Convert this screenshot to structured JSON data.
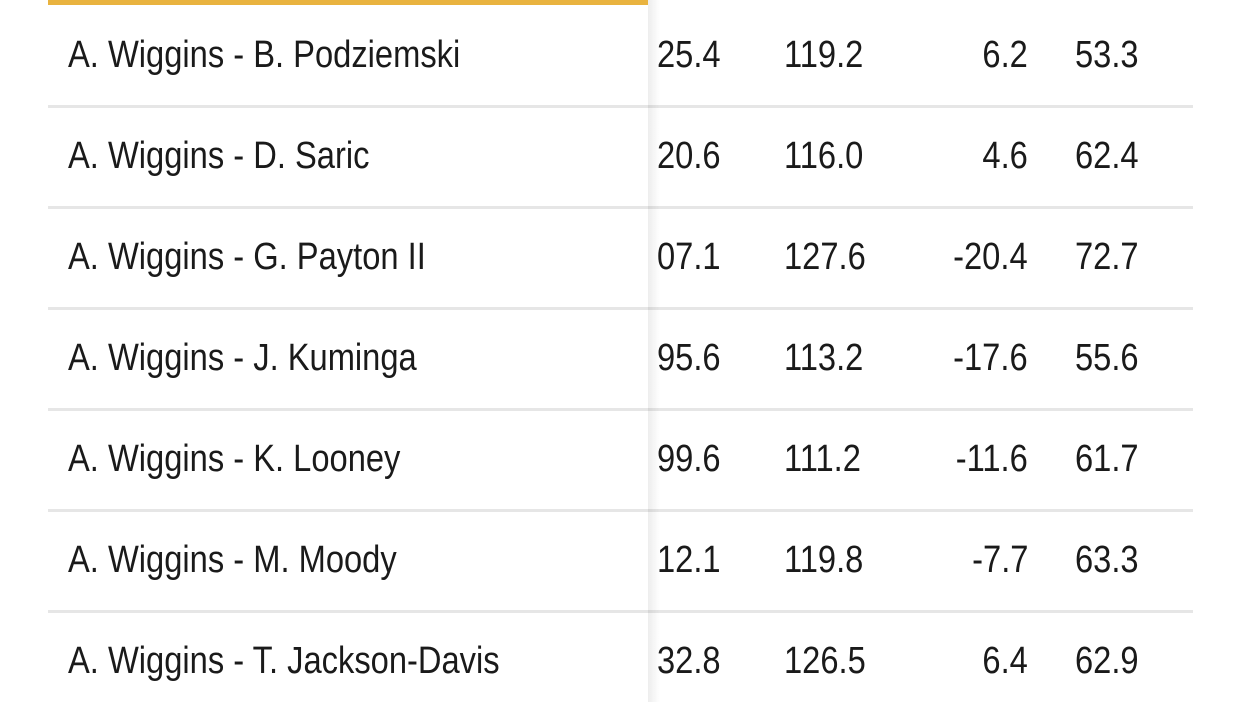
{
  "table": {
    "rows": [
      [
        "A. Wiggins - B. Podziemski",
        "25.4",
        "119.2",
        "6.2",
        "53.3"
      ],
      [
        "A. Wiggins - D. Saric",
        "20.6",
        "116.0",
        "4.6",
        "62.4"
      ],
      [
        "A. Wiggins - G. Payton II",
        "07.1",
        "127.6",
        "-20.4",
        "72.7"
      ],
      [
        "A. Wiggins - J. Kuminga",
        "95.6",
        "113.2",
        "-17.6",
        "55.6"
      ],
      [
        "A. Wiggins - K. Looney",
        "99.6",
        "111.2",
        "-11.6",
        "61.7"
      ],
      [
        "A. Wiggins - M. Moody",
        "12.1",
        "119.8",
        "-7.7",
        "63.3"
      ],
      [
        "A. Wiggins - T. Jackson-Davis",
        "32.8",
        "126.5",
        "6.4",
        "62.9"
      ]
    ]
  }
}
